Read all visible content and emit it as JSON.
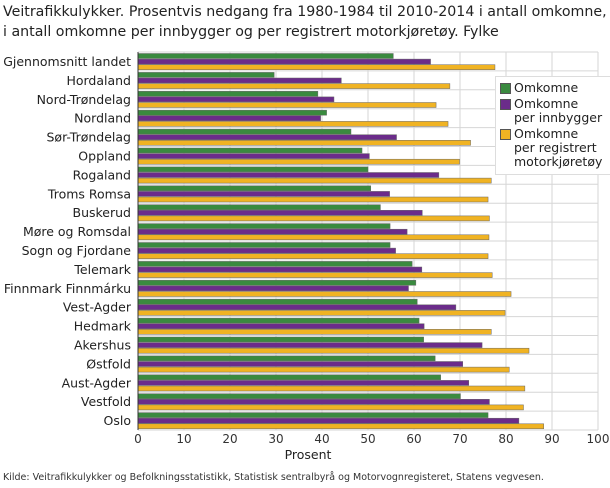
{
  "title": "Veitrafikkulykker. Prosentvis nedgang fra 1980-1984 til 2010-2014 i antall omkomne, i antall omkomne per innbygger og per registrert motorkjøretøy. Fylke",
  "source": "Kilde: Veitrafikkulykker og Befolkningsstatistikk, Statistisk sentralbyrå og Motorvognregisteret, Statens vegvesen.",
  "chart_data": {
    "type": "bar",
    "orientation": "horizontal",
    "xlabel": "Prosent",
    "xlim": [
      0,
      100
    ],
    "xticks": [
      "0",
      "10",
      "20",
      "30",
      "40",
      "50",
      "60",
      "70",
      "80",
      "90",
      "100"
    ],
    "grid": true,
    "legend_placement": "right",
    "categories": [
      "Gjennomsnitt landet",
      "Hordaland",
      "Nord-Trøndelag",
      "Nordland",
      "Sør-Trøndelag",
      "Oppland",
      "Rogaland",
      "Troms Romsa",
      "Buskerud",
      "Møre og Romsdal",
      "Sogn og Fjordane",
      "Telemark",
      "Finnmark Finnmárku",
      "Vest-Agder",
      "Hedmark",
      "Akershus",
      "Østfold",
      "Aust-Agder",
      "Vestfold",
      "Oslo"
    ],
    "series": [
      {
        "name": "Omkomne",
        "color": "#3a8a3f",
        "values": [
          55.5,
          29.6,
          39.1,
          41.0,
          46.3,
          48.7,
          50.0,
          50.6,
          52.7,
          54.8,
          54.8,
          59.6,
          60.4,
          60.7,
          61.1,
          62.1,
          64.6,
          65.8,
          70.1,
          76.1
        ]
      },
      {
        "name": "Omkomne per innbygger",
        "color": "#6b2c8a",
        "values": [
          63.6,
          44.2,
          42.6,
          39.7,
          56.2,
          50.3,
          65.4,
          54.7,
          61.8,
          58.5,
          56.0,
          61.7,
          58.8,
          69.1,
          62.2,
          74.8,
          70.6,
          71.9,
          76.4,
          82.8
        ]
      },
      {
        "name": "Omkomne per registrert motorkjøretøy",
        "color": "#f0b323",
        "values": [
          77.6,
          67.8,
          64.8,
          67.4,
          72.3,
          69.9,
          76.8,
          76.1,
          76.4,
          76.3,
          76.1,
          77.0,
          81.1,
          79.8,
          76.8,
          85.0,
          80.7,
          84.1,
          83.8,
          88.2
        ]
      }
    ],
    "legend_labels": [
      [
        "Omkomne"
      ],
      [
        "Omkomne",
        "per innbygger"
      ],
      [
        "Omkomne",
        "per registrert",
        "motorkjøretøy"
      ]
    ]
  }
}
